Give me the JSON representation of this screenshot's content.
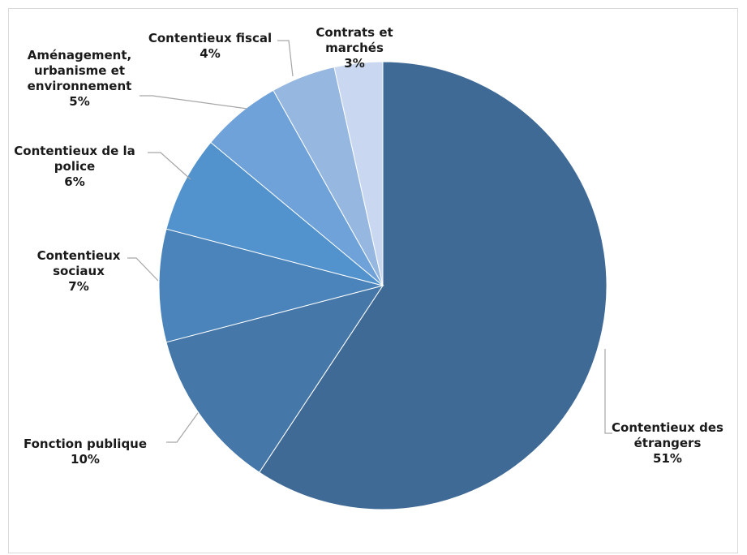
{
  "chart_data": {
    "type": "pie",
    "title": "",
    "legend": "none",
    "slices": [
      {
        "name": "Contentieux des étrangers",
        "label_lines": [
          "Contentieux des",
          "étrangers"
        ],
        "value": 51,
        "value_label": "51%",
        "color": "#3f6a96"
      },
      {
        "name": "Fonction publique",
        "label_lines": [
          "Fonction publique"
        ],
        "value": 10,
        "value_label": "10%",
        "color": "#4577a8"
      },
      {
        "name": "Contentieux sociaux",
        "label_lines": [
          "Contentieux",
          "sociaux"
        ],
        "value": 7,
        "value_label": "7%",
        "color": "#4b84bb"
      },
      {
        "name": "Contentieux de la police",
        "label_lines": [
          "Contentieux de la",
          "police"
        ],
        "value": 6,
        "value_label": "6%",
        "color": "#5393cd"
      },
      {
        "name": "Aménagement, urbanisme et environnement",
        "label_lines": [
          "Aménagement,",
          "urbanisme et",
          "environnement"
        ],
        "value": 5,
        "value_label": "5%",
        "color": "#6ea2d8"
      },
      {
        "name": "Contentieux fiscal",
        "label_lines": [
          "Contentieux fiscal"
        ],
        "value": 4,
        "value_label": "4%",
        "color": "#96b7e0"
      },
      {
        "name": "Contrats et marchés",
        "label_lines": [
          "Contrats et",
          "marchés"
        ],
        "value": 3,
        "value_label": "3%",
        "color": "#c9d8f0"
      }
    ]
  }
}
